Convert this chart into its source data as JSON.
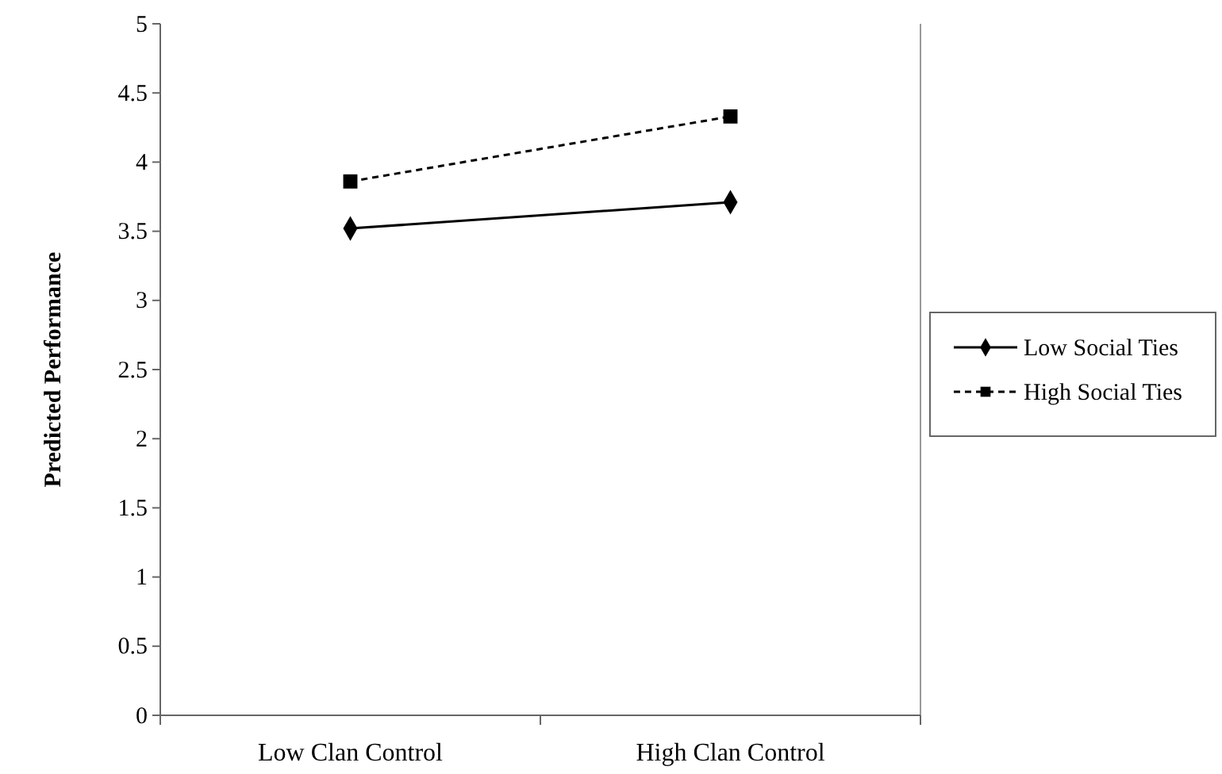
{
  "chart_data": {
    "type": "line",
    "ylabel": "Predicted Performance",
    "categories": [
      "Low Clan Control",
      "High Clan Control"
    ],
    "series": [
      {
        "name": "Low Social Ties",
        "color": "#000000",
        "values": [
          3.52,
          3.71
        ],
        "marker": "diamond",
        "line_style": "solid"
      },
      {
        "name": "High Social Ties",
        "color": "#000000",
        "values": [
          3.86,
          4.33
        ],
        "marker": "square",
        "line_style": "dashed"
      }
    ],
    "ylim": [
      0,
      5
    ],
    "yticks": [
      0,
      0.5,
      1,
      1.5,
      2,
      2.5,
      3,
      3.5,
      4,
      4.5,
      5
    ],
    "grid": false,
    "legend": "right"
  }
}
